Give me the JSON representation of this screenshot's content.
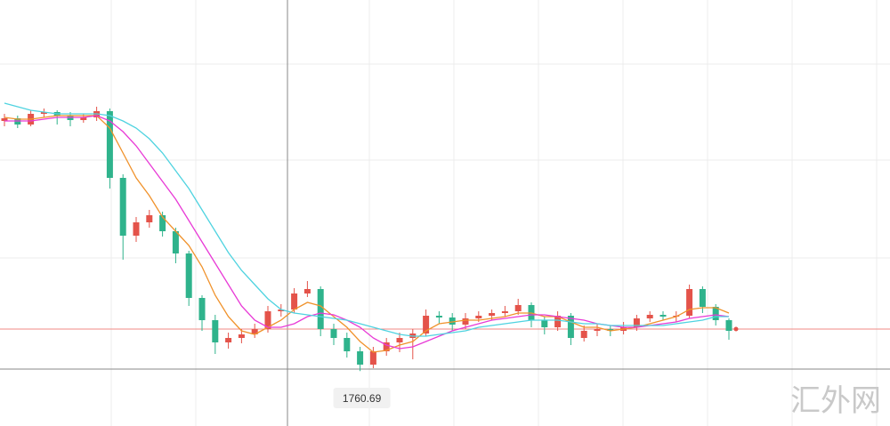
{
  "chart_data": {
    "type": "candlestick",
    "ylim": [
      1745.25,
      1865
    ],
    "up_color": "#e4534a",
    "down_color": "#2fb38c",
    "open": [
      1831,
      1831.75,
      1830,
      1833,
      1833.5,
      1832.5,
      1831.25,
      1832,
      1833.75,
      1815,
      1798.75,
      1802.5,
      1804.5,
      1800,
      1793.75,
      1781.25,
      1775,
      1768.75,
      1770,
      1771,
      1772.5,
      1777.5,
      1778,
      1782.5,
      1783.75,
      1772.5,
      1770,
      1766.25,
      1762.5,
      1766.25,
      1768.75,
      1770,
      1771.25,
      1776.25,
      1775.75,
      1773.75,
      1775.5,
      1776.25,
      1777,
      1777.5,
      1779.25,
      1775,
      1773,
      1776.25,
      1770,
      1772,
      1772.5,
      1772,
      1773,
      1775.5,
      1776.5,
      1776,
      1776.25,
      1783.75,
      1778.75,
      1775
    ],
    "high": [
      1833,
      1832.5,
      1834,
      1834.5,
      1834,
      1833.5,
      1833,
      1835,
      1834.5,
      1816,
      1804,
      1806,
      1805.5,
      1801,
      1794.5,
      1782,
      1776.5,
      1771.5,
      1772.5,
      1774,
      1779,
      1779.5,
      1784,
      1786,
      1784.5,
      1774,
      1771.5,
      1767.5,
      1767.5,
      1770,
      1771.5,
      1772.5,
      1778,
      1777.5,
      1777,
      1777,
      1777.5,
      1778,
      1779,
      1781,
      1780,
      1776,
      1777.5,
      1777,
      1773.5,
      1774,
      1773.5,
      1774.5,
      1776.5,
      1777.5,
      1777.5,
      1777.5,
      1785,
      1784.5,
      1779.5,
      1775.5
    ],
    "low": [
      1829.5,
      1829,
      1829.5,
      1832,
      1830,
      1829.5,
      1830.5,
      1831,
      1812,
      1792,
      1797,
      1801,
      1798.5,
      1791,
      1779,
      1772,
      1765.5,
      1767,
      1768.5,
      1770,
      1771.5,
      1776,
      1777,
      1781.5,
      1770.5,
      1768,
      1764.5,
      1760.69,
      1761.5,
      1765,
      1766,
      1764,
      1770.5,
      1774,
      1772,
      1772.5,
      1774.5,
      1775,
      1776,
      1776.5,
      1773,
      1771,
      1772,
      1768,
      1769,
      1770.5,
      1770.5,
      1771,
      1772,
      1774.5,
      1775,
      1774.5,
      1775.5,
      1777,
      1773.5,
      1769.5
    ],
    "close": [
      1831.75,
      1830,
      1833,
      1833.5,
      1832.5,
      1831.25,
      1832,
      1833.75,
      1815,
      1798.75,
      1802.5,
      1804.5,
      1800,
      1793.75,
      1781.25,
      1775,
      1768.75,
      1770,
      1771,
      1772.5,
      1777.5,
      1778,
      1782.5,
      1783.75,
      1772.5,
      1770,
      1766.25,
      1762.5,
      1766.25,
      1768.75,
      1770,
      1771.25,
      1776.25,
      1775.75,
      1773.75,
      1775.5,
      1776.25,
      1777,
      1777.5,
      1779.25,
      1775,
      1773,
      1776.25,
      1770,
      1772,
      1772.5,
      1772,
      1773,
      1775.5,
      1776.5,
      1776,
      1776.25,
      1783.75,
      1778.75,
      1775,
      1772
    ],
    "series": [
      {
        "color": "#f0922b",
        "values": [
          1832,
          1831.5,
          1831.5,
          1832,
          1832.5,
          1832.5,
          1832.5,
          1832.5,
          1829,
          1822,
          1815,
          1810,
          1804,
          1800,
          1796,
          1790,
          1782,
          1776,
          1772,
          1771,
          1773,
          1775,
          1778,
          1780,
          1779,
          1776,
          1773,
          1769,
          1766,
          1766.5,
          1768,
          1769,
          1772,
          1774,
          1774.5,
          1775,
          1775,
          1775.5,
          1776,
          1777,
          1777,
          1776,
          1776,
          1774.5,
          1773,
          1773,
          1772,
          1772.5,
          1773,
          1774,
          1775,
          1776,
          1778,
          1778.5,
          1778.5,
          1777
        ]
      },
      {
        "color": "#e83ad6",
        "values": [
          1831,
          1831,
          1831,
          1831.5,
          1832,
          1832,
          1832,
          1832.5,
          1831,
          1828,
          1824,
          1819,
          1814,
          1809,
          1803,
          1797,
          1791,
          1785,
          1779,
          1775,
          1773,
          1773,
          1774,
          1776,
          1777,
          1776.5,
          1775,
          1773,
          1770,
          1768,
          1767,
          1767.5,
          1769,
          1770.5,
          1772,
          1773,
          1774,
          1775,
          1775.5,
          1776,
          1776.5,
          1776.5,
          1776,
          1775.5,
          1775,
          1774,
          1773.5,
          1773,
          1773,
          1773.5,
          1774,
          1774.5,
          1775.5,
          1776,
          1776.5,
          1776
        ]
      },
      {
        "color": "#4fd3e0",
        "values": [
          1836,
          1835,
          1834,
          1833.5,
          1833,
          1833,
          1833,
          1833,
          1832.5,
          1831,
          1829,
          1826,
          1822,
          1817,
          1812,
          1806,
          1800,
          1794,
          1789,
          1785,
          1781,
          1778,
          1777,
          1776.5,
          1776,
          1775.5,
          1775,
          1774,
          1773,
          1772,
          1771,
          1770.5,
          1770.5,
          1771,
          1771.5,
          1772,
          1773,
          1773.5,
          1774,
          1774.5,
          1775,
          1775,
          1775,
          1774.5,
          1774,
          1774,
          1773.5,
          1773.5,
          1773.5,
          1773.5,
          1773.5,
          1774,
          1774.5,
          1775,
          1776,
          1776
        ]
      }
    ],
    "price_line": 1772.5,
    "low_marker": {
      "value": 1760.69,
      "label": "1760.69"
    },
    "watermark": "汇外网"
  }
}
